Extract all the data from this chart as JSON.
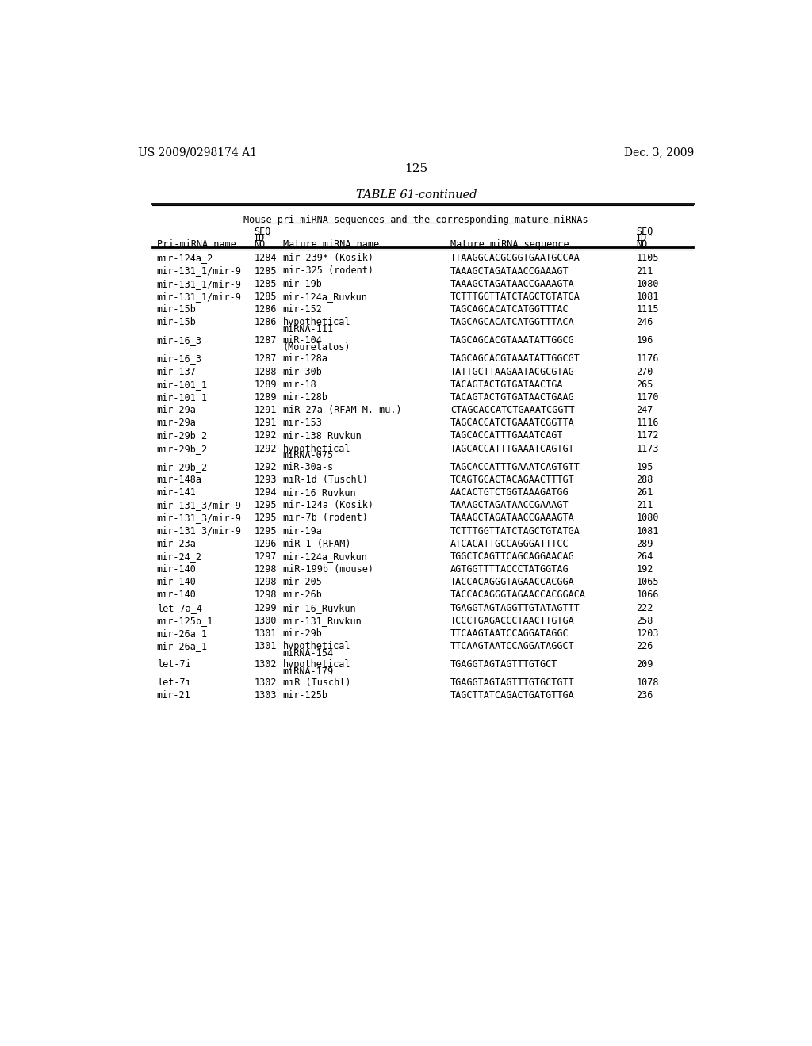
{
  "header_left": "US 2009/0298174 A1",
  "header_right": "Dec. 3, 2009",
  "page_number": "125",
  "table_title": "TABLE 61-continued",
  "table_subtitle": "Mouse pri-miRNA sequences and the corresponding mature miRNAs",
  "rows": [
    [
      "mir-124a_2",
      "1284",
      "mir-239* (Kosik)",
      "TTAAGGCACGCGGTGAATGCCAA",
      "1105"
    ],
    [
      "mir-131_1/mir-9",
      "1285",
      "mir-325 (rodent)",
      "TAAAGCTAGATAACCGAAAGT",
      "211"
    ],
    [
      "mir-131_1/mir-9",
      "1285",
      "mir-19b",
      "TAAAGCTAGATAACCGAAAGTA",
      "1080"
    ],
    [
      "mir-131_1/mir-9",
      "1285",
      "mir-124a_Ruvkun",
      "TCTTTGGTTATCTAGCTGTATGA",
      "1081"
    ],
    [
      "mir-15b",
      "1286",
      "mir-152",
      "TAGCAGCACATCATGGTTTAC",
      "1115"
    ],
    [
      "mir-15b",
      "1286",
      "hypothetical\nmiRNA-111",
      "TAGCAGCACATCATGGTTTACA",
      "246"
    ],
    [
      "mir-16_3",
      "1287",
      "miR-104\n(Mourelatos)",
      "TAGCAGCACGTAAATATTGGCG",
      "196"
    ],
    [
      "mir-16_3",
      "1287",
      "mir-128a",
      "TAGCAGCACGTAAATATTGGCGT",
      "1176"
    ],
    [
      "mir-137",
      "1288",
      "mir-30b",
      "TATTGCTTAAGAATACGCGTAG",
      "270"
    ],
    [
      "mir-101_1",
      "1289",
      "mir-18",
      "TACAGTACTGTGATAACTGA",
      "265"
    ],
    [
      "mir-101_1",
      "1289",
      "mir-128b",
      "TACAGTACTGTGATAACTGAAG",
      "1170"
    ],
    [
      "mir-29a",
      "1291",
      "miR-27a (RFAM-M. mu.)",
      "CTAGCACCATCTGAAATCGGTT",
      "247"
    ],
    [
      "mir-29a",
      "1291",
      "mir-153",
      "TAGCACCATCTGAAATCGGTTA",
      "1116"
    ],
    [
      "mir-29b_2",
      "1292",
      "mir-138_Ruvkun",
      "TAGCACCATTTGAAATCAGT",
      "1172"
    ],
    [
      "mir-29b_2",
      "1292",
      "hypothetical\nmiRNA-075",
      "TAGCACCATTTGAAATCAGTGT",
      "1173"
    ],
    [
      "mir-29b_2",
      "1292",
      "miR-30a-s",
      "TAGCACCATTTGAAATCAGTGTT",
      "195"
    ],
    [
      "mir-148a",
      "1293",
      "miR-1d (Tuschl)",
      "TCAGTGCACTACAGAACTTTGT",
      "288"
    ],
    [
      "mir-141",
      "1294",
      "mir-16_Ruvkun",
      "AACACTGTCTGGTAAAGATGG",
      "261"
    ],
    [
      "mir-131_3/mir-9",
      "1295",
      "mir-124a (Kosik)",
      "TAAAGCTAGATAACCGAAAGT",
      "211"
    ],
    [
      "mir-131_3/mir-9",
      "1295",
      "mir-7b (rodent)",
      "TAAAGCTAGATAACCGAAAGTA",
      "1080"
    ],
    [
      "mir-131_3/mir-9",
      "1295",
      "mir-19a",
      "TCTTTGGTTATCTAGCTGTATGA",
      "1081"
    ],
    [
      "mir-23a",
      "1296",
      "miR-1 (RFAM)",
      "ATCACATTGCCAGGGATTTCC",
      "289"
    ],
    [
      "mir-24_2",
      "1297",
      "mir-124a_Ruvkun",
      "TGGCTCAGTTCAGCAGGAACAG",
      "264"
    ],
    [
      "mir-140",
      "1298",
      "miR-199b (mouse)",
      "AGTGGTTTTACCCTATGGTAG",
      "192"
    ],
    [
      "mir-140",
      "1298",
      "mir-205",
      "TACCACAGGGTAGAACCACGGA",
      "1065"
    ],
    [
      "mir-140",
      "1298",
      "mir-26b",
      "TACCACAGGGTAGAACCACGGACA",
      "1066"
    ],
    [
      "let-7a_4",
      "1299",
      "mir-16_Ruvkun",
      "TGAGGTAGTAGGTTGTATAGTTT",
      "222"
    ],
    [
      "mir-125b_1",
      "1300",
      "mir-131_Ruvkun",
      "TCCCTGAGACCCTAACTTGTGA",
      "258"
    ],
    [
      "mir-26a_1",
      "1301",
      "mir-29b",
      "TTCAAGTAATCCAGGATAGGC",
      "1203"
    ],
    [
      "mir-26a_1",
      "1301",
      "hypothetical\nmiRNA-154",
      "TTCAAGTAATCCAGGATAGGCT",
      "226"
    ],
    [
      "let-7i",
      "1302",
      "hypothetical\nmiRNA-179",
      "TGAGGTAGTAGTTTGTGCT",
      "209"
    ],
    [
      "let-7i",
      "1302",
      "miR (Tuschl)",
      "TGAGGTAGTAGTTTGTGCTGTT",
      "1078"
    ],
    [
      "mir-21",
      "1303",
      "mir-125b",
      "TAGCTTATCAGACTGATGTTGA",
      "236"
    ]
  ]
}
